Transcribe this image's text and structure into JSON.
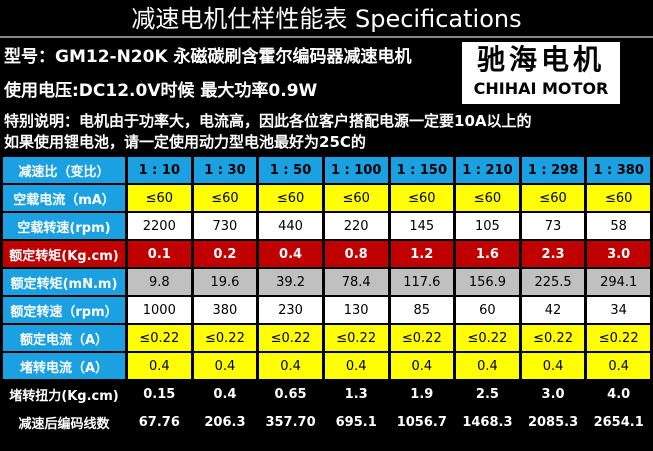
{
  "header": {
    "title": "减速电机仕样性能表 Specifications",
    "model": "型号：GM12-N20K 永磁碳刷含霍尔编码器减速电机",
    "voltage": "使用电压:DC12.0V时候 最大功率0.9W",
    "notes": [
      "特别说明：电机由于功率大，电流高，因此各位客户搭配电源一定要10A以上的",
      "如果使用锂电池，请一定使用动力型电池最好为25C的"
    ]
  },
  "logo": {
    "name": "驰海电机",
    "english": "CHIHAI MOTOR"
  },
  "table": {
    "header": [
      "减速比（变比）",
      "1 : 10",
      "1 : 30",
      "1 : 50",
      "1 : 100",
      "1 : 150",
      "1 : 210",
      "1 : 298",
      "1 : 380"
    ],
    "rows": [
      [
        "空载电流（mA）",
        "≤60",
        "≤60",
        "≤60",
        "≤60",
        "≤60",
        "≤60",
        "≤60",
        "≤60"
      ],
      [
        "空载转速(rpm)",
        "2200",
        "730",
        "440",
        "220",
        "145",
        "105",
        "73",
        "58"
      ],
      [
        "额定转矩(Kg.cm)",
        "0.1",
        "0.2",
        "0.4",
        "0.8",
        "1.2",
        "1.6",
        "2.3",
        "3.0"
      ],
      [
        "额定转矩(mN.m)",
        "9.8",
        "19.6",
        "39.2",
        "78.4",
        "117.6",
        "156.9",
        "225.5",
        "294.1"
      ],
      [
        "额定转速（rpm）",
        "1000",
        "380",
        "230",
        "130",
        "85",
        "60",
        "42",
        "34"
      ],
      [
        "额定电流（A）",
        "≤0.22",
        "≤0.22",
        "≤0.22",
        "≤0.22",
        "≤0.22",
        "≤0.22",
        "≤0.22",
        "≤0.22"
      ],
      [
        "堵转电流（A）",
        "0.4",
        "0.4",
        "0.4",
        "0.4",
        "0.4",
        "0.4",
        "0.4",
        "0.4"
      ],
      [
        "堵转扭力(Kg.cm)",
        "0.15",
        "0.4",
        "0.65",
        "1.3",
        "1.9",
        "2.5",
        "3.0",
        "4.0"
      ],
      [
        "减速后编码线数",
        "67.76",
        "206.3",
        "357.70",
        "695.1",
        "1056.7",
        "1468.3",
        "2085.3",
        "2654.1"
      ]
    ]
  }
}
